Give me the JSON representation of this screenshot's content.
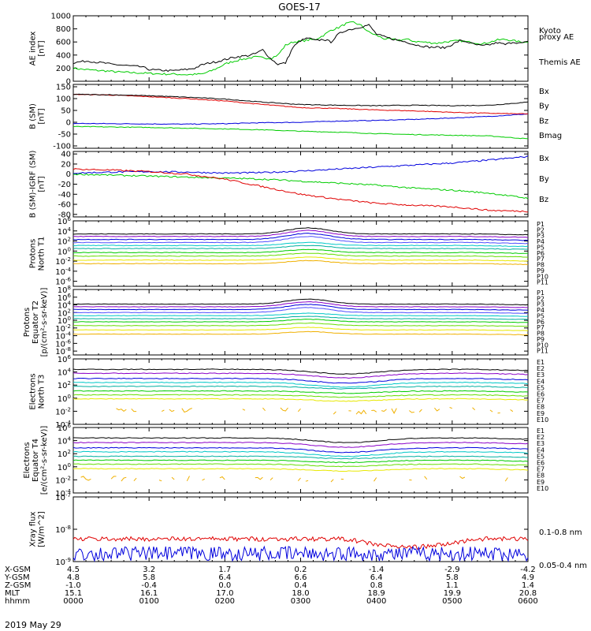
{
  "title": "GOES-17",
  "date_label": "2019 May 29",
  "colors": {
    "black": "#000000",
    "red": "#e00000",
    "green": "#00cc00",
    "blue": "#0000dd",
    "purple": "#8a00c8",
    "violet": "#5050ff",
    "cyan": "#00c8c8",
    "teal": "#00b0a0",
    "lime": "#66dd00",
    "yellow": "#e8e800",
    "orange": "#f0b000",
    "darkred": "#c80000"
  },
  "chart_data": [
    {
      "type": "line",
      "id": "ae",
      "ylabel": [
        "AE index",
        "[nT]"
      ],
      "ylim": [
        0,
        1000
      ],
      "yticks": [
        0,
        200,
        400,
        600,
        800,
        1000
      ],
      "x_hours": [
        0,
        0.1,
        0.2,
        0.3,
        0.4,
        0.5,
        0.6,
        0.7,
        0.8,
        0.9,
        1.0,
        1.1,
        1.2,
        1.3,
        1.4,
        1.5,
        1.6,
        1.7,
        1.8,
        1.9,
        2.0,
        2.1,
        2.2,
        2.3,
        2.4,
        2.5,
        2.6,
        2.7,
        2.8,
        2.9,
        3.0,
        3.1,
        3.2,
        3.3,
        3.4,
        3.5,
        3.6,
        3.7,
        3.8,
        3.9,
        4.0,
        4.1,
        4.2,
        4.3,
        4.4,
        4.5,
        4.6,
        4.7,
        4.8,
        4.9,
        5.0,
        5.1,
        5.2,
        5.3,
        5.4,
        5.5,
        5.6,
        5.7,
        5.8,
        5.9,
        6.0
      ],
      "series": [
        {
          "name": "Kyoto",
          "color": "#00cc00",
          "values": [
            200,
            185,
            175,
            165,
            160,
            150,
            140,
            135,
            130,
            125,
            120,
            115,
            110,
            110,
            105,
            100,
            105,
            110,
            150,
            200,
            260,
            300,
            330,
            350,
            370,
            360,
            350,
            400,
            550,
            600,
            610,
            630,
            640,
            700,
            780,
            820,
            880,
            900,
            850,
            750,
            700,
            650,
            640,
            630,
            640,
            610,
            600,
            590,
            580,
            600,
            610,
            620,
            600,
            590,
            570,
            600,
            630,
            640,
            620,
            600,
            600
          ]
        },
        {
          "name": "Themis AE",
          "color": "#000000",
          "values": [
            280,
            300,
            310,
            290,
            280,
            260,
            250,
            240,
            230,
            220,
            180,
            170,
            165,
            160,
            170,
            180,
            200,
            250,
            280,
            300,
            330,
            360,
            380,
            390,
            420,
            480,
            350,
            260,
            280,
            520,
            620,
            660,
            620,
            640,
            600,
            720,
            780,
            800,
            830,
            860,
            720,
            680,
            650,
            620,
            600,
            560,
            540,
            520,
            520,
            510,
            560,
            620,
            600,
            560,
            540,
            560,
            590,
            560,
            600,
            580,
            600
          ]
        }
      ],
      "legend": [
        {
          "text": "Kyoto",
          "color": "#00cc00"
        },
        {
          "text": "proxy AE",
          "color": "#00cc00"
        },
        {
          "text": "Themis AE",
          "color": "#000000"
        }
      ]
    },
    {
      "type": "line",
      "id": "bsm",
      "ylabel": [
        "B (SM)",
        "[nT]"
      ],
      "ylim": [
        -110,
        160
      ],
      "yticks": [
        -100,
        -50,
        0,
        50,
        100,
        150
      ],
      "x_hours": [
        0,
        0.5,
        1.0,
        1.5,
        2.0,
        2.5,
        3.0,
        3.5,
        4.0,
        4.5,
        5.0,
        5.5,
        6.0
      ],
      "series": [
        {
          "name": "Bx",
          "color": "#0000dd",
          "values": [
            -5,
            -6,
            -7,
            -8,
            -6,
            -2,
            0,
            5,
            8,
            12,
            18,
            25,
            35
          ]
        },
        {
          "name": "By",
          "color": "#00cc00",
          "values": [
            -18,
            -20,
            -22,
            -25,
            -28,
            -32,
            -38,
            -42,
            -48,
            -52,
            -55,
            -58,
            -70
          ]
        },
        {
          "name": "Bz",
          "color": "#e00000",
          "values": [
            118,
            115,
            108,
            100,
            90,
            75,
            62,
            58,
            52,
            48,
            42,
            38,
            35
          ]
        },
        {
          "name": "Bmag",
          "color": "#000000",
          "values": [
            118,
            116,
            112,
            106,
            98,
            85,
            75,
            72,
            70,
            72,
            70,
            72,
            85
          ]
        }
      ],
      "legend": [
        {
          "text": "Bx",
          "color": "#0000dd"
        },
        {
          "text": "By",
          "color": "#00cc00"
        },
        {
          "text": "Bz",
          "color": "#e00000"
        },
        {
          "text": "Bmag",
          "color": "#000000"
        }
      ]
    },
    {
      "type": "line",
      "id": "bsm_igrf",
      "ylabel": [
        "B (SM)-IGRF (SM)",
        "[nT]"
      ],
      "ylim": [
        -85,
        45
      ],
      "yticks": [
        -80,
        -60,
        -40,
        -20,
        0,
        20,
        40
      ],
      "x_hours": [
        0,
        0.5,
        1.0,
        1.5,
        2.0,
        2.5,
        3.0,
        3.5,
        4.0,
        4.5,
        5.0,
        5.5,
        6.0
      ],
      "series": [
        {
          "name": "Bx",
          "color": "#0000dd",
          "values": [
            2,
            4,
            5,
            4,
            2,
            3,
            6,
            10,
            14,
            18,
            22,
            28,
            35
          ]
        },
        {
          "name": "By",
          "color": "#00cc00",
          "values": [
            0,
            -2,
            -4,
            -6,
            -8,
            -10,
            -14,
            -18,
            -22,
            -28,
            -32,
            -38,
            -48
          ]
        },
        {
          "name": "Bz",
          "color": "#e00000",
          "values": [
            10,
            8,
            5,
            0,
            -10,
            -25,
            -40,
            -50,
            -58,
            -62,
            -65,
            -72,
            -74
          ]
        }
      ],
      "legend": [
        {
          "text": "Bx",
          "color": "#0000dd"
        },
        {
          "text": "By",
          "color": "#00cc00"
        },
        {
          "text": "Bz",
          "color": "#e00000"
        }
      ]
    },
    {
      "type": "line",
      "scale": "log",
      "id": "prot_t1",
      "ylabel": [
        "Protons",
        "North T1"
      ],
      "ylim_exp": [
        -7,
        6
      ],
      "yticks_exp": [
        -6,
        -4,
        -2,
        0,
        2,
        4,
        6
      ],
      "channels": [
        "P1",
        "P2",
        "P3",
        "P4",
        "P5",
        "P6",
        "P7",
        "P8",
        "P9",
        "P10",
        "P11"
      ],
      "channel_colors": [
        "#000000",
        "#8a00c8",
        "#0000dd",
        "#5050ff",
        "#00c8c8",
        "#00b0a0",
        "#00cc00",
        "#66dd00",
        "#e8e800",
        "#f0b000",
        "#c80000"
      ],
      "levels_exp": [
        3.4,
        2.9,
        2.3,
        1.7,
        1.1,
        0.5,
        -0.3,
        -1.0,
        -1.8,
        -2.5,
        -99
      ],
      "bump": {
        "center_hours": 3.1,
        "width_hours": 0.4,
        "height_exp": 1.2
      }
    },
    {
      "type": "line",
      "scale": "log",
      "id": "prot_t2",
      "ylabel": [
        "Protons",
        "Equator T2",
        "[p/(cm²-s-sr-keV)]"
      ],
      "ylim_exp": [
        -9,
        8
      ],
      "yticks_exp": [
        -8,
        -6,
        -4,
        -2,
        0,
        2,
        4,
        6,
        8
      ],
      "channels": [
        "P1",
        "P2",
        "P3",
        "P4",
        "P5",
        "P6",
        "P7",
        "P8",
        "P9",
        "P10",
        "P11"
      ],
      "channel_colors": [
        "#000000",
        "#8a00c8",
        "#0000dd",
        "#5050ff",
        "#00c8c8",
        "#00b0a0",
        "#00cc00",
        "#66dd00",
        "#e8e800",
        "#f0b000",
        "#c80000"
      ],
      "levels_exp": [
        4.2,
        3.5,
        2.8,
        2.0,
        1.2,
        0.4,
        -0.4,
        -1.4,
        -2.5,
        -3.6,
        -99
      ],
      "bump": {
        "center_hours": 3.1,
        "width_hours": 0.4,
        "height_exp": 1.3
      }
    },
    {
      "type": "line",
      "scale": "log",
      "id": "elec_t3",
      "ylabel": [
        "Electrons",
        "North T3"
      ],
      "ylim_exp": [
        -4,
        6
      ],
      "yticks_exp": [
        -4,
        -2,
        0,
        2,
        4,
        6
      ],
      "channels": [
        "E1",
        "E2",
        "E3",
        "E4",
        "E5",
        "E6",
        "E7",
        "E8",
        "E9",
        "E10"
      ],
      "channel_colors": [
        "#000000",
        "#8a00c8",
        "#0000dd",
        "#00c8c8",
        "#00b0a0",
        "#00cc00",
        "#66dd00",
        "#e8e800",
        "#f0b000",
        "#c80000"
      ],
      "levels_exp": [
        4.4,
        3.8,
        3.0,
        2.4,
        1.8,
        1.1,
        0.5,
        -0.1,
        -1.8,
        -99
      ],
      "bump": {
        "center_hours": 3.6,
        "width_hours": 0.6,
        "height_exp": -0.7
      }
    },
    {
      "type": "line",
      "scale": "log",
      "id": "elec_t4",
      "ylabel": [
        "Electrons",
        "Equator T4",
        "[e/(cm²-s-sr-keV)]"
      ],
      "ylim_exp": [
        -4,
        6
      ],
      "yticks_exp": [
        -4,
        -2,
        0,
        2,
        4,
        6
      ],
      "channels": [
        "E1",
        "E2",
        "E3",
        "E4",
        "E5",
        "E6",
        "E7",
        "E8",
        "E9",
        "E10"
      ],
      "channel_colors": [
        "#000000",
        "#8a00c8",
        "#0000dd",
        "#00c8c8",
        "#00b0a0",
        "#00cc00",
        "#66dd00",
        "#e8e800",
        "#f0b000",
        "#c80000"
      ],
      "levels_exp": [
        4.4,
        3.7,
        2.9,
        2.3,
        1.6,
        1.0,
        0.4,
        -0.3,
        -1.8,
        -99
      ],
      "bump": {
        "center_hours": 3.6,
        "width_hours": 0.6,
        "height_exp": -0.7
      }
    },
    {
      "type": "line",
      "scale": "log",
      "id": "xray",
      "ylabel": [
        "Xray flux",
        "[W/m^2]"
      ],
      "ylim_exp": [
        -9,
        -7
      ],
      "yticks_exp": [
        -9,
        -8,
        -7
      ],
      "series": [
        {
          "name": "0.1-0.8 nm",
          "color": "#e00000",
          "level_exp": -8.3
        },
        {
          "name": "0.05-0.4 nm",
          "color": "#0000dd",
          "level_exp": -8.8
        }
      ],
      "legend": [
        {
          "text": "0.1-0.8 nm",
          "color": "#e00000"
        },
        {
          "text": "0.05-0.4 nm",
          "color": "#0000dd"
        }
      ]
    }
  ],
  "ephemeris": {
    "labels": [
      "X-GSM",
      "Y-GSM",
      "Z-GSM",
      "MLT",
      "hhmm"
    ],
    "columns": [
      [
        "4.5",
        "4.8",
        "-1.0",
        "15.1",
        "0000"
      ],
      [
        "3.2",
        "5.8",
        "-0.4",
        "16.1",
        "0100"
      ],
      [
        "1.7",
        "6.4",
        "0.0",
        "17.0",
        "0200"
      ],
      [
        "0.2",
        "6.6",
        "0.4",
        "18.0",
        "0300"
      ],
      [
        "-1.4",
        "6.4",
        "0.8",
        "18.9",
        "0400"
      ],
      [
        "-2.9",
        "5.8",
        "1.1",
        "19.9",
        "0500"
      ],
      [
        "-4.2",
        "4.9",
        "1.4",
        "20.8",
        "0600"
      ]
    ]
  }
}
